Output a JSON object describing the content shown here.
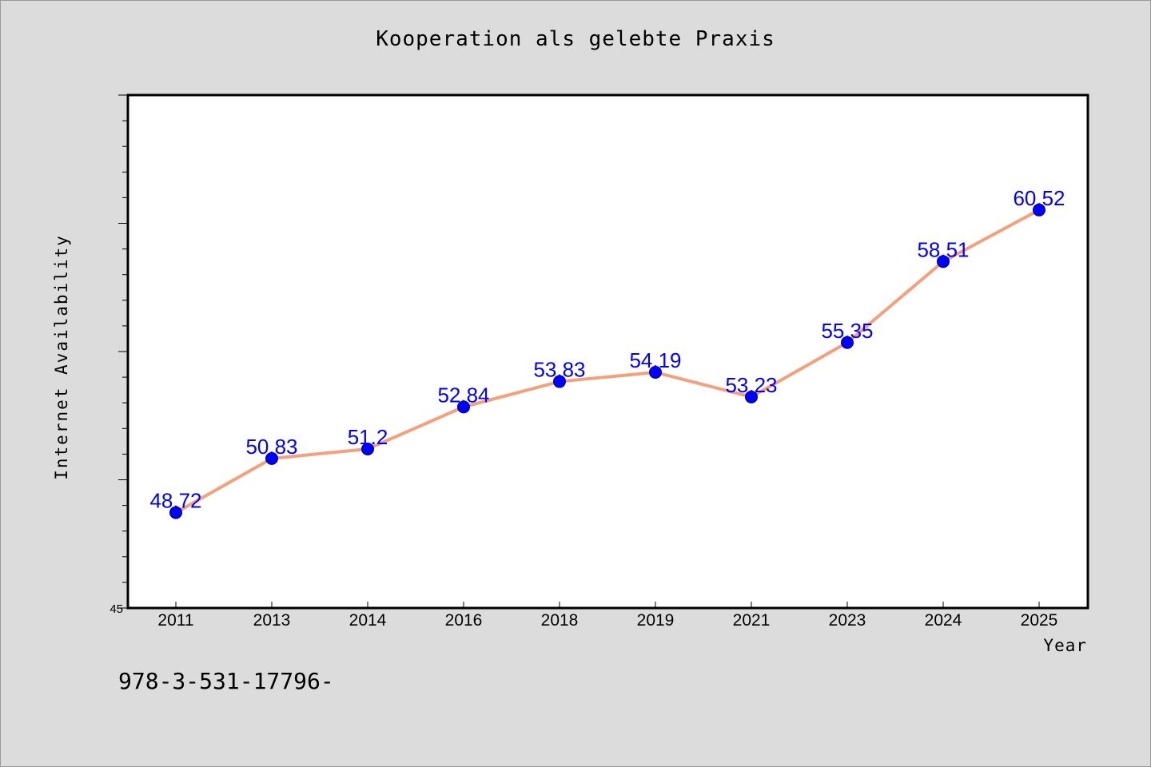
{
  "chart_data": {
    "type": "line",
    "title": "Kooperation als gelebte Praxis",
    "xlabel": "Year",
    "ylabel": "Internet Availability",
    "categories": [
      "2011",
      "2013",
      "2014",
      "2016",
      "2018",
      "2019",
      "2021",
      "2023",
      "2024",
      "2025"
    ],
    "series": [
      {
        "values": [
          48.72,
          50.83,
          51.2,
          52.84,
          53.83,
          54.19,
          53.23,
          55.35,
          58.51,
          60.52
        ],
        "labels": [
          "48.72",
          "50.83",
          "51.2",
          "52.84",
          "53.83",
          "54.19",
          "53.23",
          "55.35",
          "58.51",
          "60.52"
        ]
      }
    ],
    "ylim": [
      45,
      65
    ],
    "y_tick_labels": [
      {
        "value": 45,
        "label": "45"
      }
    ],
    "grid": false,
    "colors": {
      "line": "#f4a07c",
      "marker": "#0000ff",
      "data_label": "#0000ff",
      "background": "#dcdcdc",
      "plot_background": "#ffffff"
    }
  },
  "footnote": "978-3-531-17796-"
}
